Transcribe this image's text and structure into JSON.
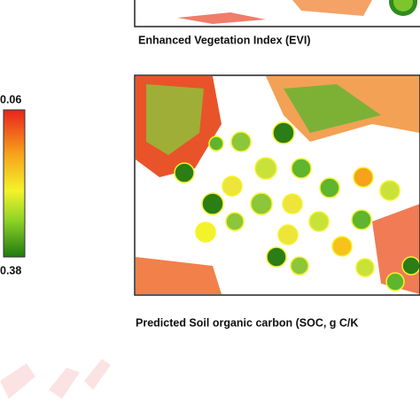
{
  "panels": [
    {
      "caption": "Enhanced Vegetation Index (EVI)"
    },
    {
      "caption": "Predicted Soil organic carbon (SOC, g C/K"
    }
  ],
  "colorbar": {
    "top_label": "0.06",
    "bottom_label": "0.38"
  }
}
